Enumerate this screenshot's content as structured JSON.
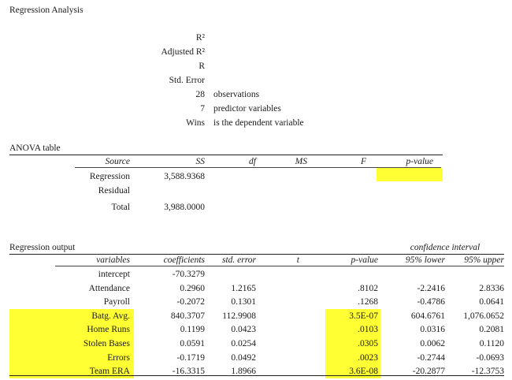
{
  "title": "Regression Analysis",
  "summary": {
    "labels": [
      "R²",
      "Adjusted R²",
      "R",
      "Std. Error"
    ],
    "observations_value": "28",
    "observations_label": "observations",
    "predictors_value": "7",
    "predictors_label": "predictor variables",
    "dependent_value": "Wins",
    "dependent_label": "is the dependent variable"
  },
  "anova": {
    "title": "ANOVA table",
    "headers": [
      "Source",
      "SS",
      "df",
      "MS",
      "F",
      "p-value"
    ],
    "rows": [
      {
        "source": "Regression",
        "ss": "3,588.9368"
      },
      {
        "source": "Residual",
        "ss": ""
      },
      {
        "source": "Total",
        "ss": "3,988.0000"
      }
    ],
    "highlight_color": "#ffff33"
  },
  "regression": {
    "title": "Regression output",
    "ci_title": "confidence interval",
    "headers": [
      "variables",
      "coefficients",
      "std. error",
      "t",
      "p-value",
      "95% lower",
      "95% upper"
    ],
    "rows": [
      {
        "variable": "intercept",
        "coef": "-70.3279",
        "se": "",
        "t": "",
        "p": "",
        "lower": "",
        "upper": "",
        "highlight": false
      },
      {
        "variable": "Attendance",
        "coef": "0.2960",
        "se": "1.2165",
        "t": "",
        "p": ".8102",
        "lower": "-2.2416",
        "upper": "2.8336",
        "highlight": false
      },
      {
        "variable": "Payroll",
        "coef": "-0.2072",
        "se": "0.1301",
        "t": "",
        "p": ".1268",
        "lower": "-0.4786",
        "upper": "0.0641",
        "highlight": false
      },
      {
        "variable": "Batg. Avg.",
        "coef": "840.3707",
        "se": "112.9908",
        "t": "",
        "p": "3.5E-07",
        "lower": "604.6761",
        "upper": "1,076.0652",
        "highlight": true
      },
      {
        "variable": "Home Runs",
        "coef": "0.1199",
        "se": "0.0423",
        "t": "",
        "p": ".0103",
        "lower": "0.0316",
        "upper": "0.2081",
        "highlight": true
      },
      {
        "variable": "Stolen Bases",
        "coef": "0.0591",
        "se": "0.0254",
        "t": "",
        "p": ".0305",
        "lower": "0.0062",
        "upper": "0.1120",
        "highlight": true
      },
      {
        "variable": "Errors",
        "coef": "-0.1719",
        "se": "0.0492",
        "t": "",
        "p": ".0023",
        "lower": "-0.2744",
        "upper": "-0.0693",
        "highlight": true
      },
      {
        "variable": "Team ERA",
        "coef": "-16.3315",
        "se": "1.8966",
        "t": "",
        "p": "3.6E-08",
        "lower": "-20.2877",
        "upper": "-12.3753",
        "highlight": true
      }
    ]
  }
}
